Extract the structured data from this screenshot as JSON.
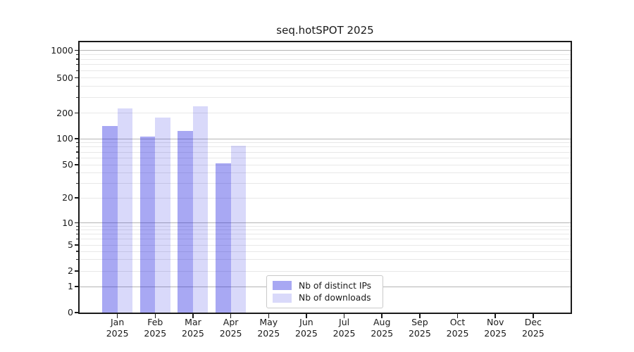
{
  "title": "seq.hotSPOT 2025",
  "chart_data": {
    "type": "bar",
    "title": "seq.hotSPOT 2025",
    "yscale": "symlog",
    "grid": "horizontal-major-and-minor",
    "legend_position": "lower center",
    "x_tick_months": [
      "Jan",
      "Feb",
      "Mar",
      "Apr",
      "May",
      "Jun",
      "Jul",
      "Aug",
      "Sep",
      "Oct",
      "Nov",
      "Dec"
    ],
    "x_tick_year": "2025",
    "yticks_labeled": [
      0,
      1,
      2,
      5,
      10,
      20,
      50,
      100,
      200,
      500,
      1000
    ],
    "yticks_major_grid": [
      1,
      10,
      100,
      1000
    ],
    "yticks_minor_grid": [
      2,
      3,
      4,
      5,
      6,
      7,
      8,
      9,
      20,
      30,
      40,
      50,
      60,
      70,
      80,
      90,
      200,
      300,
      400,
      500,
      600,
      700,
      800,
      900
    ],
    "ylim": [
      0,
      1400
    ],
    "series": [
      {
        "name": "Nb of distinct IPs",
        "color": "rgba(20,20,222,0.37)",
        "values": [
          140,
          105,
          124,
          52,
          null,
          null,
          null,
          null,
          null,
          null,
          null,
          null
        ]
      },
      {
        "name": "Nb of downloads",
        "color": "rgba(20,20,222,0.16)",
        "values": [
          225,
          178,
          237,
          83,
          null,
          null,
          null,
          null,
          null,
          null,
          null,
          null
        ]
      }
    ]
  },
  "colors": {
    "bar_distinct_ips": "rgba(20,20,222,0.37)",
    "bar_downloads": "rgba(20,20,222,0.16)",
    "grid_major": "#b5b5b5",
    "grid_minor": "#e8e8e8",
    "spine": "#1a1a1a",
    "text": "#1a1a1a",
    "legend_border": "#c9c9c9"
  }
}
